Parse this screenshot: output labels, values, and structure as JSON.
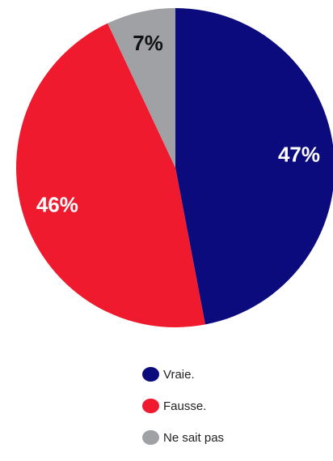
{
  "chart_data": {
    "type": "pie",
    "slices": [
      {
        "label": "Vraie.",
        "value": 47,
        "display": "47%",
        "color": "#0b0b7d",
        "label_color": "#ffffff"
      },
      {
        "label": "Fausse.",
        "value": 46,
        "display": "46%",
        "color": "#ef1a2d",
        "label_color": "#ffffff"
      },
      {
        "label": "Ne sait pas",
        "value": 7,
        "display": "7%",
        "color": "#a0a1a5",
        "label_color": "#111111"
      }
    ],
    "start": "top",
    "direction": "clockwise",
    "legend_position": "bottom"
  }
}
